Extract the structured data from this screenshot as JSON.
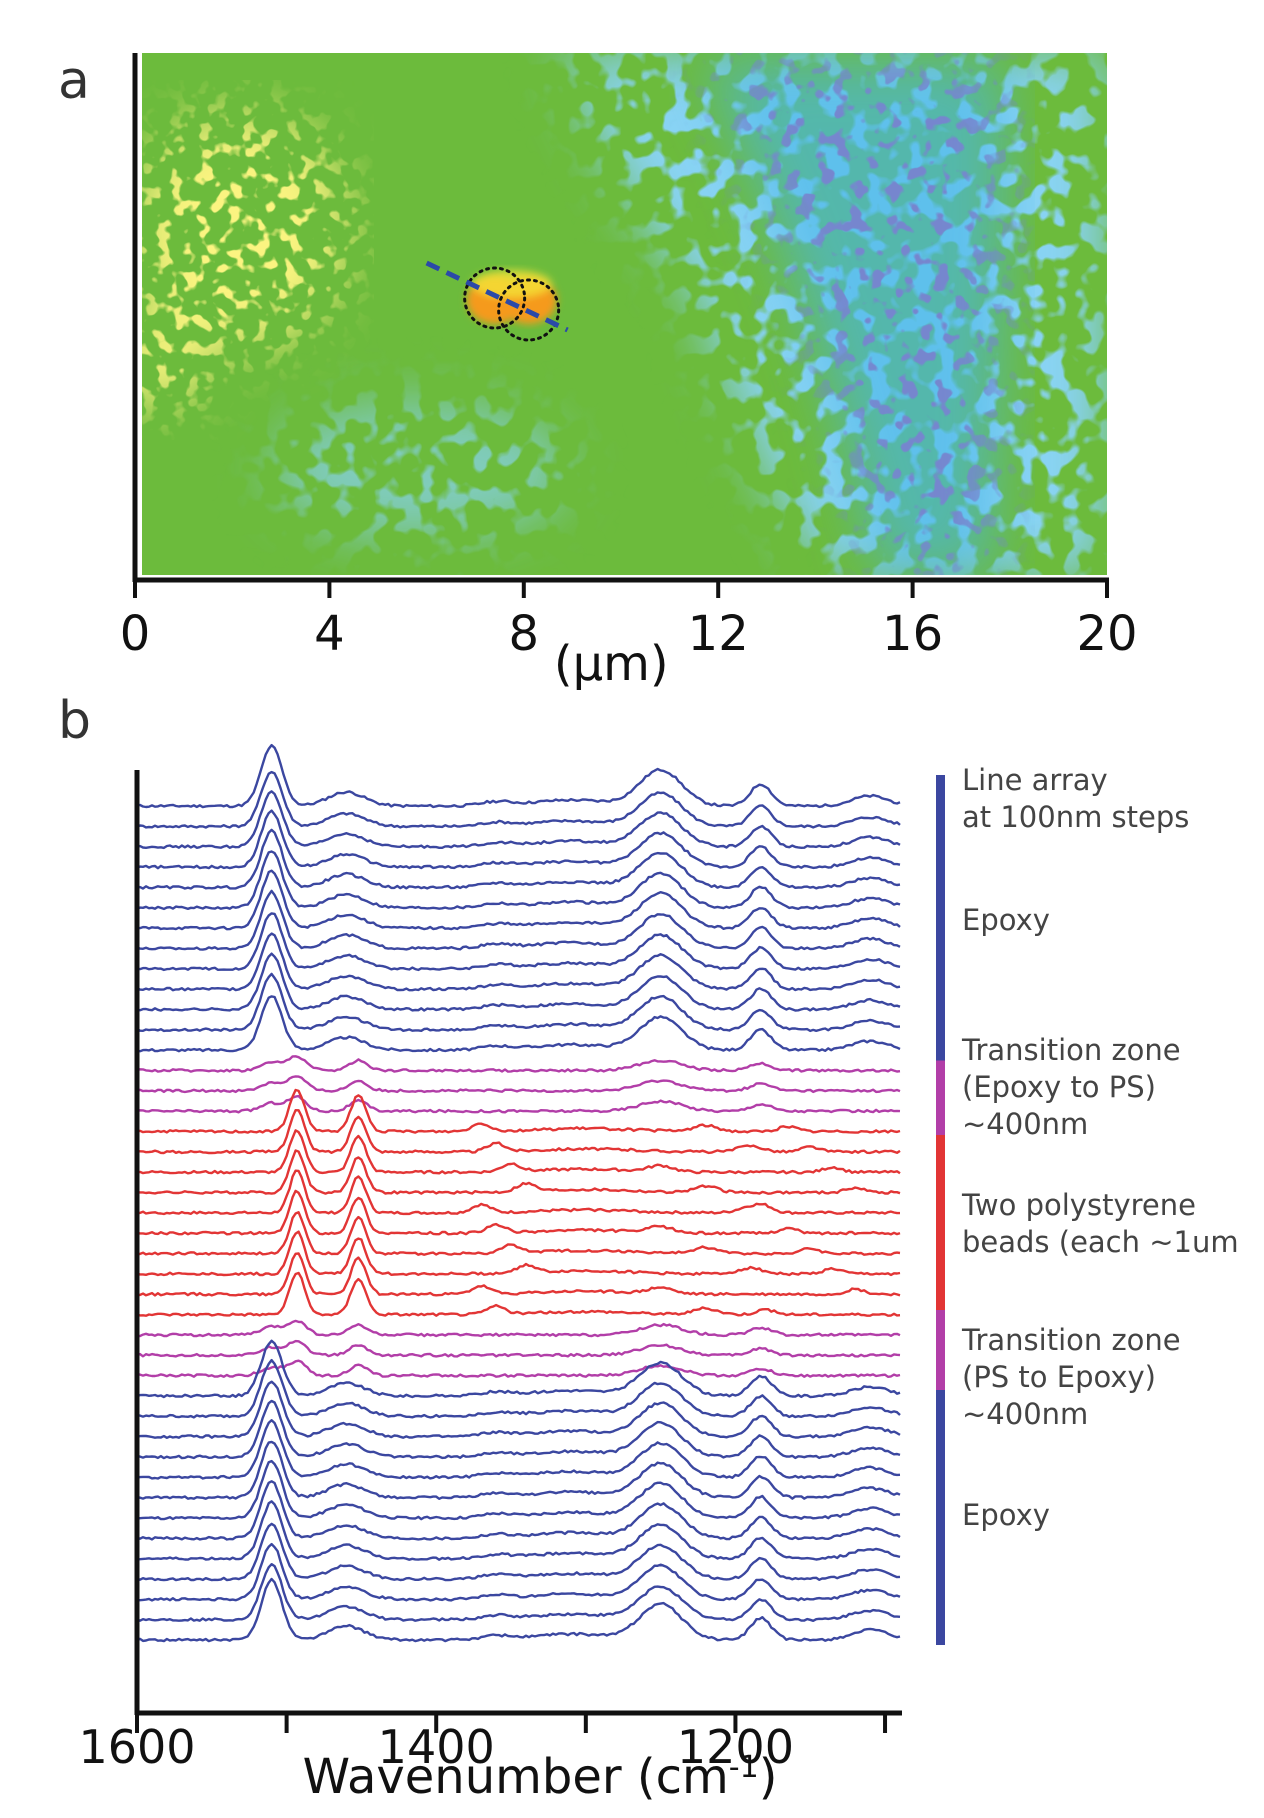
{
  "chart_data": [
    {
      "panel": "a",
      "type": "heatmap",
      "xlabel": "(µm)",
      "x_ticks": [
        "0",
        "4",
        "8",
        "12",
        "16",
        "20"
      ],
      "xlim": [
        0,
        20
      ],
      "colors": {
        "low": "#2f3c9c",
        "mid_low": "#48b6e8",
        "mid": "#6cbb3c",
        "high": "#f4e43a",
        "peak": "#f59a1c"
      },
      "scan_line": {
        "x_start_um": 6.0,
        "x_end_um": 8.9,
        "color": "#2b4aa8"
      },
      "beads_um": [
        {
          "x": 7.4
        },
        {
          "x": 8.1
        }
      ]
    },
    {
      "panel": "b",
      "type": "line",
      "xlabel": "Wavenumber (cm",
      "xlabel_sup": "-1",
      "xlabel_close": ")",
      "xlim": [
        1600,
        1090
      ],
      "x_ticks": [
        "1600",
        "1400",
        "1200"
      ],
      "x_tick_values": [
        1600,
        1500,
        1400,
        1300,
        1200,
        1100
      ],
      "colors": {
        "epoxy": "#3b47a0",
        "transition": "#b23ea8",
        "ps": "#e23535"
      },
      "epoxy_peaks": [
        1510,
        1460,
        1250,
        1185,
        1110
      ],
      "ps_peaks": [
        1493,
        1452
      ],
      "traces": [
        "epoxy",
        "epoxy",
        "epoxy",
        "epoxy",
        "epoxy",
        "epoxy",
        "epoxy",
        "epoxy",
        "epoxy",
        "epoxy",
        "epoxy",
        "epoxy",
        "epoxy",
        "transition",
        "transition",
        "transition",
        "ps",
        "ps",
        "ps",
        "ps",
        "ps",
        "ps",
        "ps",
        "ps",
        "ps",
        "ps",
        "transition",
        "transition",
        "transition",
        "epoxy",
        "epoxy",
        "epoxy",
        "epoxy",
        "epoxy",
        "epoxy",
        "epoxy",
        "epoxy",
        "epoxy",
        "epoxy",
        "epoxy",
        "epoxy",
        "epoxy"
      ],
      "annotations": [
        {
          "lines": [
            "Line array",
            "at 100nm steps"
          ]
        },
        {
          "lines": [
            "Epoxy"
          ]
        },
        {
          "lines": [
            "Transition zone",
            "(Epoxy to PS)",
            "~400nm"
          ]
        },
        {
          "lines": [
            "Two polystyrene",
            "beads (each ~1um"
          ]
        },
        {
          "lines": [
            "Transition zone",
            "(PS to Epoxy)",
            "~400nm"
          ]
        },
        {
          "lines": [
            "Epoxy"
          ]
        }
      ]
    }
  ],
  "labels": {
    "panel_a": "a",
    "panel_b": "b"
  }
}
